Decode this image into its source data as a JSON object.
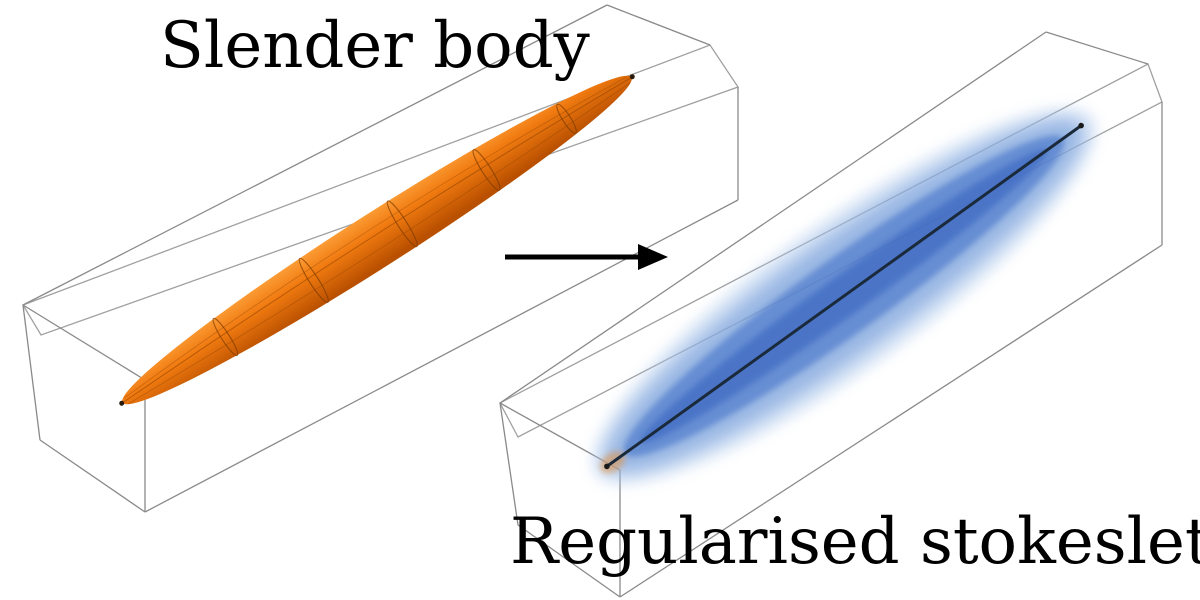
{
  "captions": {
    "left": "Slender body",
    "right": "Regularised stokeslets"
  },
  "colors": {
    "body_fill": "#f07a10",
    "body_highlight": "#ff9a2a",
    "body_shadow": "#c45a00",
    "stokeslet_cloud": "#3f72c6",
    "stokeslet_line": "#1a2a3a",
    "box_edges": "#8a8a8a",
    "arrow": "#000000",
    "background": "#ffffff"
  },
  "icons": {
    "transition": "arrow-right-icon"
  }
}
